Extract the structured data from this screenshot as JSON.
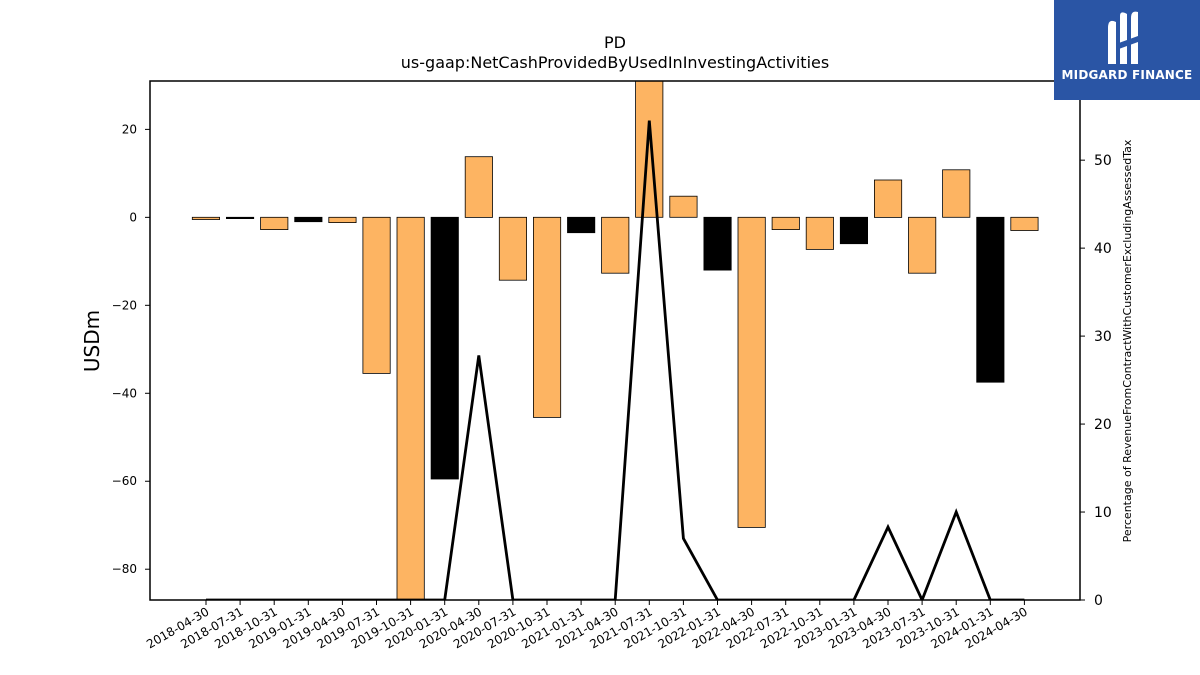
{
  "logo": {
    "text": "MIDGARD FINANCE",
    "color": "#2a55a5"
  },
  "chart_data": {
    "type": "bar",
    "title": "PD",
    "subtitle": "us-gaap:NetCashProvidedByUsedInInvestingActivities",
    "ylabel": "USDm",
    "ylabel_right": "Percentage of RevenueFromContractWithCustomerExcludingAssessedTax",
    "ylim": [
      -87,
      31
    ],
    "ylim_right": [
      0,
      59
    ],
    "yticks": [
      20,
      0,
      -20,
      -40,
      -60,
      -80
    ],
    "yticks_right": [
      0,
      10,
      20,
      30,
      40,
      50
    ],
    "categories": [
      "2018-04-30",
      "2018-07-31",
      "2018-10-31",
      "2019-01-31",
      "2019-04-30",
      "2019-07-31",
      "2019-10-31",
      "2020-01-31",
      "2020-04-30",
      "2020-07-31",
      "2020-10-31",
      "2021-01-31",
      "2021-04-30",
      "2021-07-31",
      "2021-10-31",
      "2022-01-31",
      "2022-04-30",
      "2022-07-31",
      "2022-10-31",
      "2023-01-31",
      "2023-04-30",
      "2023-07-31",
      "2023-10-31",
      "2024-01-31",
      "2024-04-30"
    ],
    "series": [
      {
        "type": "bar",
        "values": [
          -0.5,
          -0.3,
          -2.8,
          -1.0,
          -1.2,
          -35.5,
          -92,
          -59.5,
          13.8,
          -14.3,
          -45.5,
          -3.5,
          -12.7,
          31,
          4.8,
          -12.0,
          -70.5,
          -2.8,
          -7.3,
          -6.0,
          8.5,
          -12.7,
          10.8,
          -37.5,
          -3.0
        ],
        "colors": [
          "#fdb462",
          "#000000",
          "#fdb462",
          "#000000",
          "#fdb462",
          "#fdb462",
          "#fdb462",
          "#000000",
          "#fdb462",
          "#fdb462",
          "#fdb462",
          "#000000",
          "#fdb462",
          "#fdb462",
          "#fdb462",
          "#000000",
          "#fdb462",
          "#fdb462",
          "#fdb462",
          "#000000",
          "#fdb462",
          "#fdb462",
          "#fdb462",
          "#000000",
          "#fdb462"
        ]
      },
      {
        "type": "line",
        "axis": "right",
        "color": "#000000",
        "values": [
          0,
          0,
          0,
          0,
          0,
          0,
          0,
          0,
          27.8,
          0,
          0,
          0,
          0,
          54.5,
          7.0,
          0,
          0,
          0,
          0,
          0,
          8.3,
          0,
          10.0,
          0,
          0
        ]
      }
    ]
  }
}
